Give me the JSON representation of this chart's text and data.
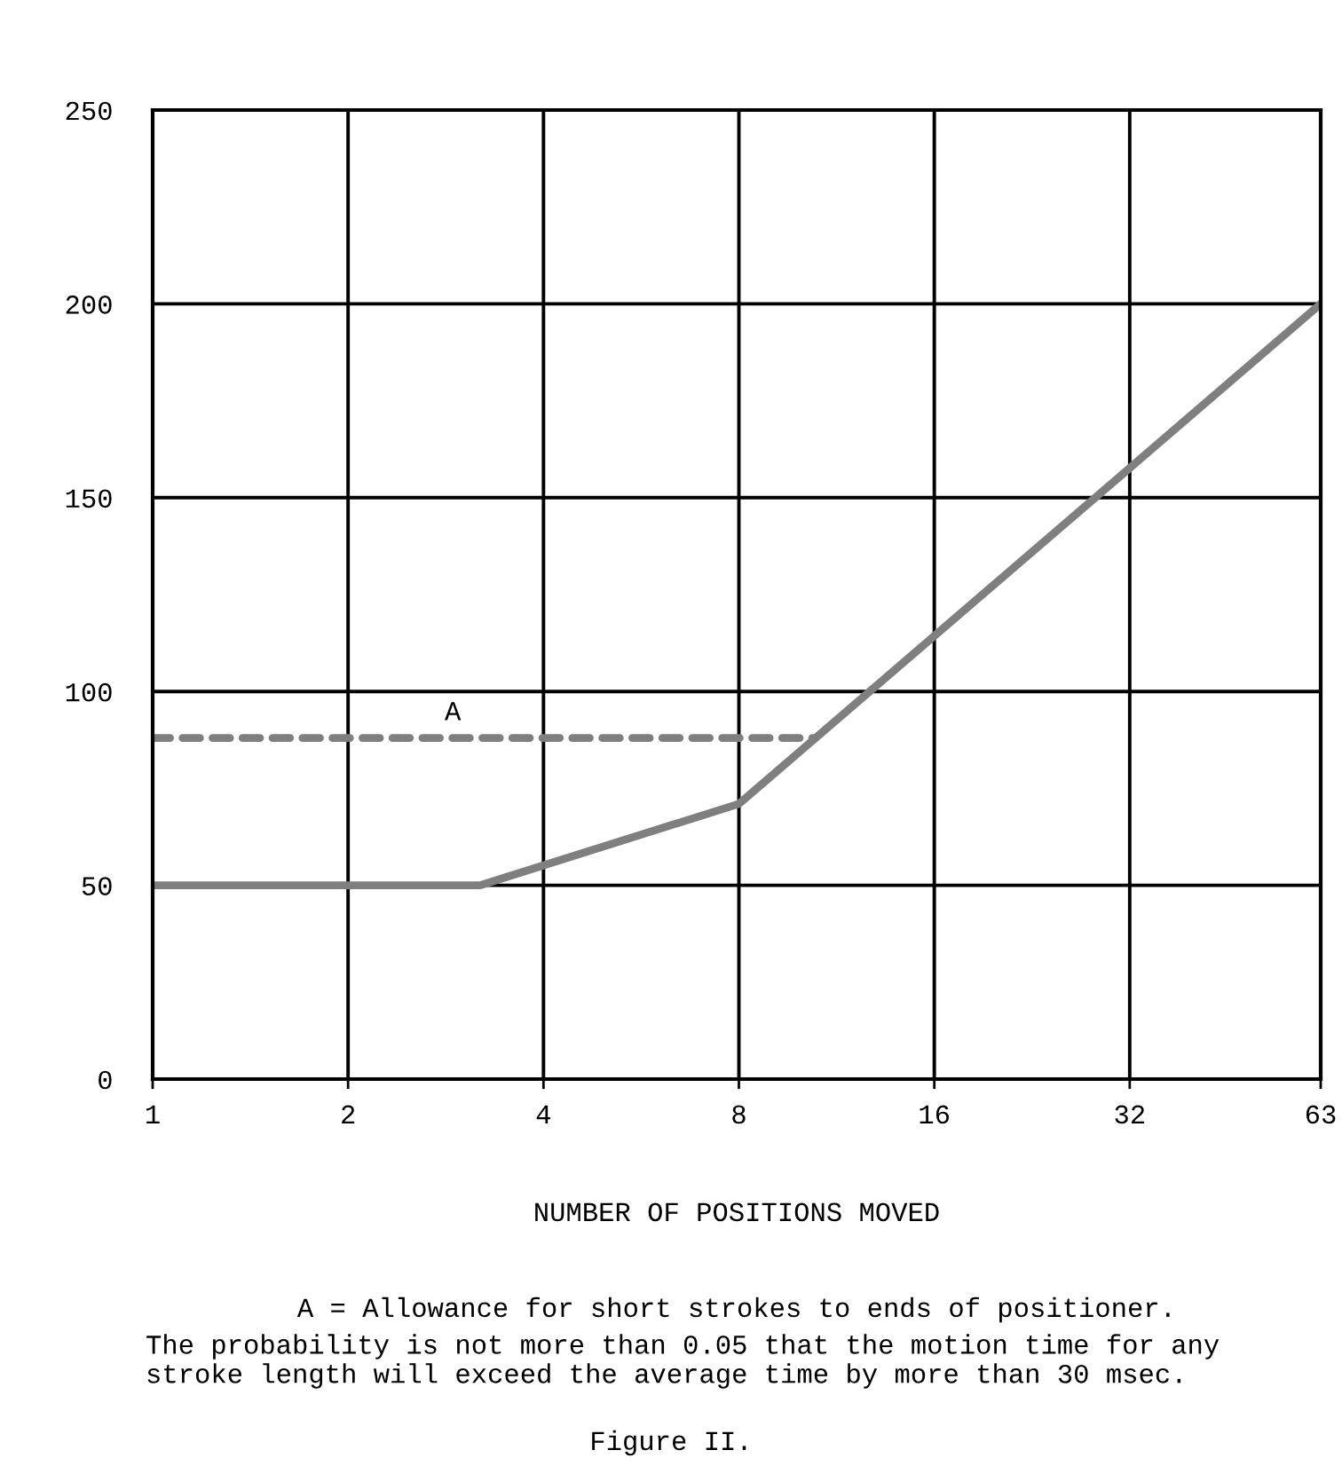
{
  "chart_data": {
    "type": "line",
    "xlabel": "NUMBER OF POSITIONS MOVED",
    "annotations": [
      {
        "text": "A",
        "x": 2.9,
        "y": 88
      },
      "A = Allowance for short strokes to ends of positioner.",
      "The probability is not more than 0.05 that the motion time for any\nstroke length will exceed the average time by more than 30 msec.",
      "Figure II."
    ],
    "log": "x",
    "xlim": [
      1,
      63
    ],
    "xticks": [
      1,
      2,
      4,
      8,
      16,
      32,
      63
    ],
    "ylim": [
      0,
      250
    ],
    "yticks": [
      0,
      50,
      100,
      150,
      200,
      250
    ],
    "grid": true,
    "marker": "none",
    "series": [
      {
        "x": [
          1,
          3.2,
          8,
          63
        ],
        "values": [
          50,
          50,
          71,
          200
        ],
        "color": "#7f7f7f",
        "line_style": "solid"
      },
      {
        "x": [
          1,
          10.5
        ],
        "values": [
          88,
          88
        ],
        "color": "#7f7f7f",
        "line_style": "dashed"
      }
    ]
  }
}
